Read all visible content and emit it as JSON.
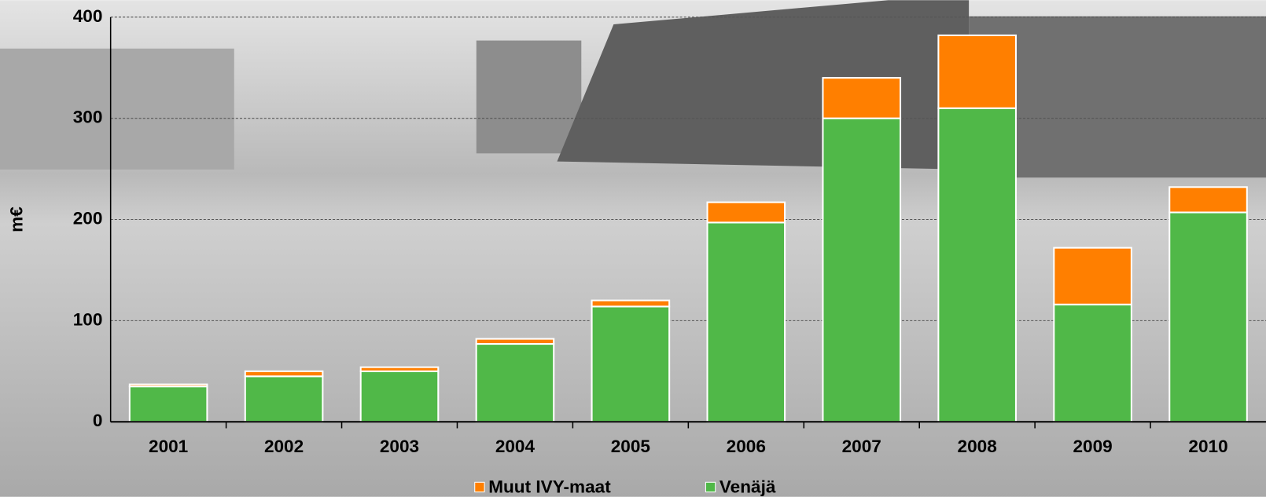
{
  "chart_data": {
    "type": "bar",
    "stacked": true,
    "y_label": "m€",
    "categories": [
      "2001",
      "2002",
      "2003",
      "2004",
      "2005",
      "2006",
      "2007",
      "2008",
      "2009",
      "2010"
    ],
    "series": [
      {
        "name": "Muut IVY-maat",
        "color": "#ff7f00",
        "values": [
          2,
          5,
          4,
          5,
          6,
          20,
          40,
          72,
          56,
          25
        ]
      },
      {
        "name": "Venäjä",
        "color": "#50b848",
        "values": [
          35,
          45,
          50,
          77,
          114,
          197,
          300,
          310,
          116,
          207
        ]
      }
    ],
    "ylim": [
      0,
      400
    ],
    "yticks": [
      0,
      100,
      200,
      300,
      400
    ],
    "grid": true,
    "legend": "bottom"
  }
}
